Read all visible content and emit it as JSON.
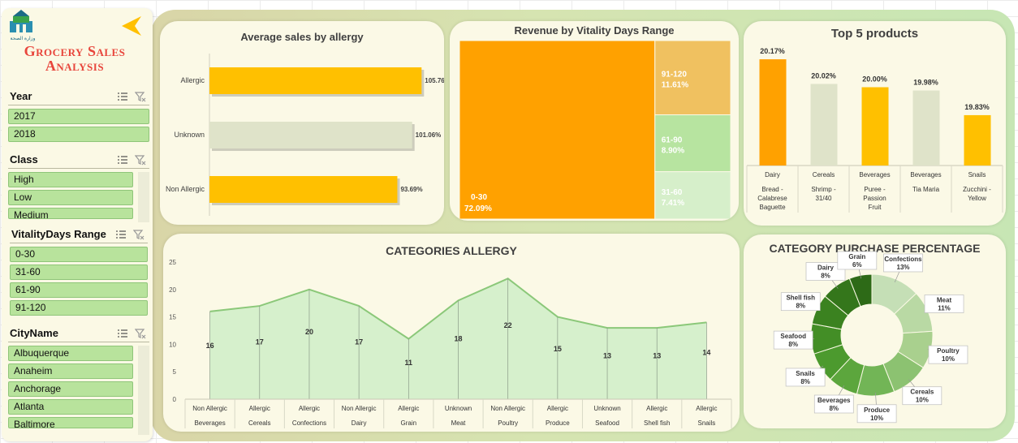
{
  "sidebar": {
    "logo_text": "وزارة الصحة",
    "title_line1": "Grocery Sales",
    "title_line2": "Analysis",
    "slicers": {
      "year": {
        "title": "Year",
        "items": [
          "2017",
          "2018"
        ]
      },
      "class": {
        "title": "Class",
        "items": [
          "High",
          "Low",
          "Medium"
        ]
      },
      "vitality": {
        "title": "VitalityDays Range",
        "items": [
          "0-30",
          "31-60",
          "61-90",
          "91-120"
        ]
      },
      "city": {
        "title": "CityName",
        "items": [
          "Albuquerque",
          "Anaheim",
          "Anchorage",
          "Atlanta",
          "Baltimore"
        ]
      }
    }
  },
  "colors": {
    "accent_orange": "#ffa100",
    "accent_yellow": "#ffc000",
    "green_light": "#b8e39c",
    "title_red": "#e8463c"
  },
  "allergy_chart": {
    "title": "Average sales by allergy",
    "chart_data": {
      "type": "bar",
      "orientation": "horizontal",
      "categories": [
        "Allergic",
        "Unknown",
        "Non Allergic"
      ],
      "values": [
        105.76,
        101.06,
        93.69
      ],
      "value_labels": [
        "105.76%",
        "101.06%",
        "93.69%"
      ],
      "colors": [
        "#ffc000",
        "#dfe3c9",
        "#ffc000"
      ]
    }
  },
  "treemap": {
    "title": "Revenue by Vitality Days Range",
    "chart_data": {
      "type": "treemap",
      "items": [
        {
          "label": "0-30",
          "value": 72.09,
          "pct": "72.09%",
          "color": "#ffa100"
        },
        {
          "label": "91-120",
          "value": 11.61,
          "pct": "11.61%",
          "color": "#f0c160"
        },
        {
          "label": "61-90",
          "value": 8.9,
          "pct": "8.90%",
          "color": "#b7e4a0"
        },
        {
          "label": "31-60",
          "value": 7.41,
          "pct": "7.41%",
          "color": "#d6efca"
        }
      ]
    }
  },
  "top5": {
    "title": "Top 5 products",
    "chart_data": {
      "type": "bar",
      "categories": [
        {
          "cat": "Dairy",
          "product": "Bread - Calabrese Baguette"
        },
        {
          "cat": "Cereals",
          "product": "Shrimp - 31/40"
        },
        {
          "cat": "Beverages",
          "product": "Puree - Passion Fruit"
        },
        {
          "cat": "Beverages",
          "product": "Tia Maria"
        },
        {
          "cat": "Snails",
          "product": "Zucchini - Yellow"
        }
      ],
      "values": [
        20.17,
        20.02,
        20.0,
        19.98,
        19.83
      ],
      "value_labels": [
        "20.17%",
        "20.02%",
        "20.00%",
        "19.98%",
        "19.83%"
      ],
      "colors": [
        "#ffa100",
        "#dfe3c9",
        "#ffc000",
        "#dfe3c9",
        "#ffc000"
      ]
    }
  },
  "area": {
    "title": "CATEGORIES ALLERGY",
    "chart_data": {
      "type": "area",
      "categories": [
        {
          "allergy": "Non Allergic",
          "cat": "Beverages"
        },
        {
          "allergy": "Allergic",
          "cat": "Cereals"
        },
        {
          "allergy": "Allergic",
          "cat": "Confections"
        },
        {
          "allergy": "Non Allergic",
          "cat": "Dairy"
        },
        {
          "allergy": "Allergic",
          "cat": "Grain"
        },
        {
          "allergy": "Unknown",
          "cat": "Meat"
        },
        {
          "allergy": "Non Allergic",
          "cat": "Poultry"
        },
        {
          "allergy": "Allergic",
          "cat": "Produce"
        },
        {
          "allergy": "Unknown",
          "cat": "Seafood"
        },
        {
          "allergy": "Allergic",
          "cat": "Shell fish"
        },
        {
          "allergy": "Allergic",
          "cat": "Snails"
        }
      ],
      "values": [
        16,
        17,
        20,
        17,
        11,
        18,
        22,
        15,
        13,
        13,
        14
      ],
      "ylim": [
        0,
        25
      ],
      "yticks": [
        "0",
        "5",
        "10",
        "15",
        "20",
        "25"
      ],
      "grid": true
    }
  },
  "donut": {
    "title": "CATEGORY PURCHASE PERCENTAGE",
    "chart_data": {
      "type": "pie",
      "style": "donut",
      "slices": [
        {
          "name": "Confections",
          "value": 13,
          "label": "13%",
          "color": "#c5dfb6"
        },
        {
          "name": "Meat",
          "value": 11,
          "label": "11%",
          "color": "#b9d9a4"
        },
        {
          "name": "Poultry",
          "value": 10,
          "label": "10%",
          "color": "#a9d08e"
        },
        {
          "name": "Cereals",
          "value": 10,
          "label": "10%",
          "color": "#8cc271"
        },
        {
          "name": "Produce",
          "value": 10,
          "label": "10%",
          "color": "#72b556"
        },
        {
          "name": "Beverages",
          "value": 8,
          "label": "8%",
          "color": "#5ca63d"
        },
        {
          "name": "Snails",
          "value": 8,
          "label": "8%",
          "color": "#4c9a2e"
        },
        {
          "name": "Seafood",
          "value": 8,
          "label": "8%",
          "color": "#438e26"
        },
        {
          "name": "Shell fish",
          "value": 8,
          "label": "8%",
          "color": "#3b8220"
        },
        {
          "name": "Dairy",
          "value": 8,
          "label": "8%",
          "color": "#34761b"
        },
        {
          "name": "Grain",
          "value": 6,
          "label": "6%",
          "color": "#2d6a17"
        }
      ]
    }
  }
}
